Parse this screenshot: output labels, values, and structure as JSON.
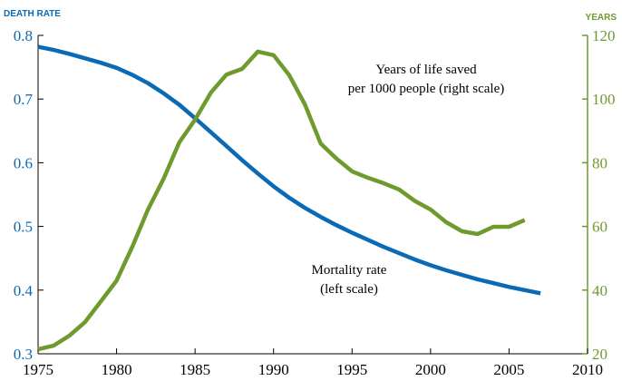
{
  "chart_data": {
    "type": "line",
    "y_label": "DEATH RATE",
    "y2_label": "YEARS",
    "annotations": [
      "Years of life saved",
      "per 1000 people (right scale)",
      "Mortality rate",
      "(left scale)"
    ],
    "xlim": [
      1975,
      2010
    ],
    "xticks": [
      1975,
      1980,
      1985,
      1990,
      1995,
      2000,
      2005,
      2010
    ],
    "ylim": [
      0.3,
      0.8
    ],
    "yticks": [
      0.3,
      0.4,
      0.5,
      0.6,
      0.7,
      0.8
    ],
    "y2lim": [
      20,
      120
    ],
    "y2ticks": [
      20,
      40,
      60,
      80,
      100,
      120
    ],
    "series": [
      {
        "name": "Mortality rate",
        "color": "#0a6ab5",
        "x": [
          1975,
          1976,
          1977,
          1978,
          1979,
          1980,
          1981,
          1982,
          1983,
          1984,
          1985,
          1986,
          1987,
          1988,
          1989,
          1990,
          1991,
          1992,
          1993,
          1994,
          1995,
          1996,
          1997,
          1998,
          1999,
          2000,
          2001,
          2002,
          2003,
          2004,
          2005,
          2006,
          2007
        ],
        "values": [
          0.782,
          0.777,
          0.771,
          0.764,
          0.757,
          0.749,
          0.738,
          0.725,
          0.709,
          0.691,
          0.67,
          0.648,
          0.626,
          0.604,
          0.583,
          0.563,
          0.545,
          0.529,
          0.515,
          0.502,
          0.49,
          0.479,
          0.468,
          0.458,
          0.448,
          0.439,
          0.431,
          0.424,
          0.417,
          0.411,
          0.405,
          0.4,
          0.395
        ]
      },
      {
        "name": "Years of life saved",
        "color": "#6e9a2e",
        "axis": "y2",
        "x": [
          1975,
          1976,
          1977,
          1978,
          1979,
          1980,
          1981,
          1982,
          1983,
          1984,
          1985,
          1986,
          1987,
          1988,
          1989,
          1990,
          1991,
          1992,
          1993,
          1994,
          1995,
          1996,
          1997,
          1998,
          1999,
          2000,
          2001,
          2002,
          2003,
          2004,
          2005,
          2006
        ],
        "values": [
          21.4,
          22.6,
          25.7,
          30,
          36.5,
          43,
          53.6,
          65.3,
          75,
          86.4,
          93.5,
          102,
          107.7,
          109.5,
          114.9,
          113.8,
          107.5,
          98.3,
          86,
          81.3,
          77.3,
          75.3,
          73.6,
          71.6,
          68,
          65.3,
          61.3,
          58.5,
          57.6,
          59.9,
          59.9,
          62
        ]
      }
    ]
  }
}
